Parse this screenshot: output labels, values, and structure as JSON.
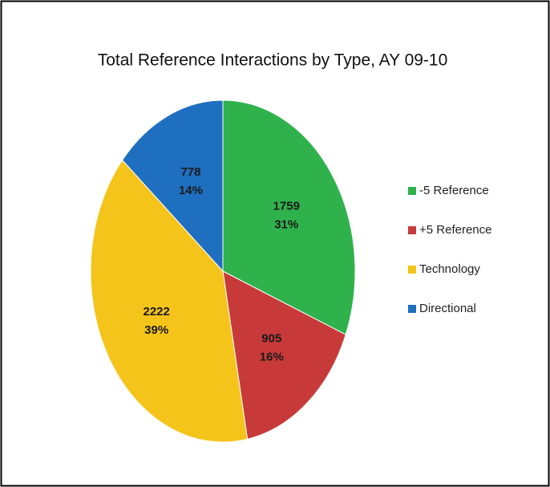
{
  "chart_data": {
    "type": "pie",
    "title": "Total Reference Interactions by Type, AY 09-10",
    "categories": [
      "-5 Reference",
      "+5 Reference",
      "Technology",
      "Directional"
    ],
    "values": [
      1759,
      905,
      2222,
      778
    ],
    "percent_labels": [
      "31%",
      "16%",
      "39%",
      "14%"
    ],
    "colors": [
      "#2fb24c",
      "#c83a3a",
      "#f4c41a",
      "#1f6fc0"
    ],
    "legend": "right"
  }
}
